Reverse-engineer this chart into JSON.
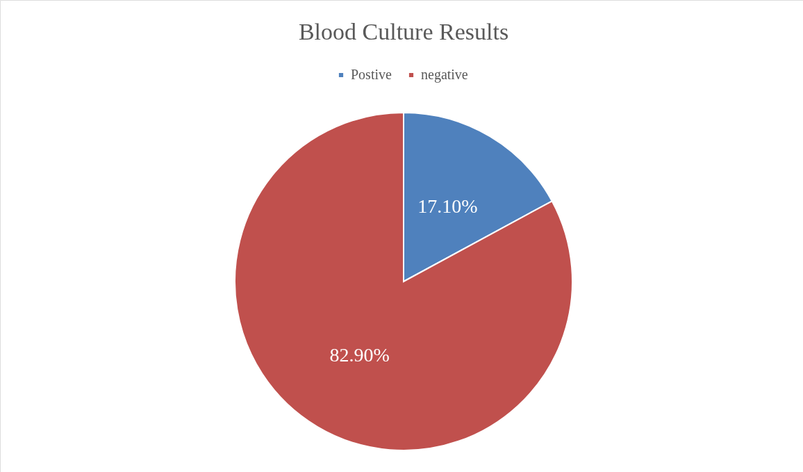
{
  "chart_data": {
    "type": "pie",
    "title": "Blood Culture Results",
    "categories": [
      "Postive",
      "negative"
    ],
    "values": [
      17.1,
      82.9
    ],
    "colors": [
      "#4f81bd",
      "#c0504d"
    ],
    "value_labels": [
      "17.10%",
      "82.90%"
    ],
    "legend": "top"
  }
}
